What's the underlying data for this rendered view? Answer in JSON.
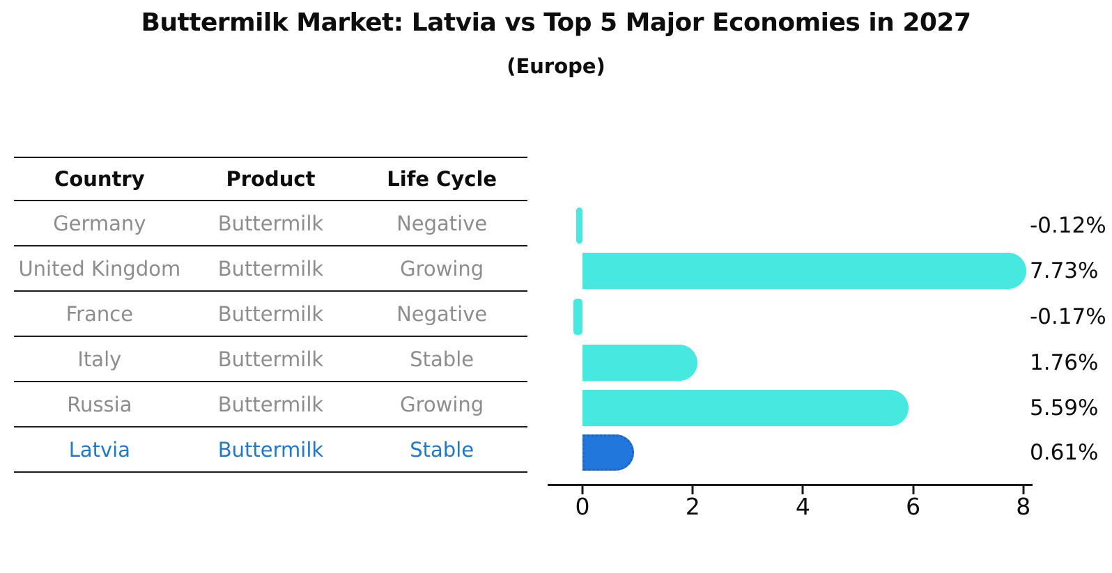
{
  "title": "Buttermilk Market: Latvia vs Top 5 Major Economies in 2027",
  "subtitle": "(Europe)",
  "table": {
    "headers": [
      "Country",
      "Product",
      "Life Cycle"
    ]
  },
  "chart_data": {
    "type": "bar",
    "orientation": "horizontal",
    "title": "Buttermilk Market: Latvia vs Top 5 Major Economies in 2027",
    "subtitle": "(Europe)",
    "xlabel": "",
    "ylabel": "",
    "x_ticks": [
      0,
      2,
      4,
      6,
      8
    ],
    "xlim": [
      -0.6,
      8.2
    ],
    "grid": false,
    "legend": false,
    "categories": [
      "Germany",
      "United Kingdom",
      "France",
      "Italy",
      "Russia",
      "Latvia"
    ],
    "values": [
      -0.12,
      7.73,
      -0.17,
      1.76,
      5.59,
      0.61
    ],
    "rows": [
      {
        "country": "Germany",
        "product": "Buttermilk",
        "life_cycle": "Negative",
        "value": -0.12,
        "label": "-0.12%",
        "highlight": false
      },
      {
        "country": "United Kingdom",
        "product": "Buttermilk",
        "life_cycle": "Growing",
        "value": 7.73,
        "label": "7.73%",
        "highlight": false
      },
      {
        "country": "France",
        "product": "Buttermilk",
        "life_cycle": "Negative",
        "value": -0.17,
        "label": "-0.17%",
        "highlight": false
      },
      {
        "country": "Italy",
        "product": "Buttermilk",
        "life_cycle": "Stable",
        "value": 1.76,
        "label": "1.76%",
        "highlight": false
      },
      {
        "country": "Russia",
        "product": "Buttermilk",
        "life_cycle": "Growing",
        "value": 5.59,
        "label": "5.59%",
        "highlight": false
      },
      {
        "country": "Latvia",
        "product": "Buttermilk",
        "life_cycle": "Stable",
        "value": 0.61,
        "label": "0.61%",
        "highlight": true
      }
    ],
    "colors": {
      "bar": "#46e8e0",
      "highlight_bar": "#2277dc",
      "highlight_text": "#1f78cb",
      "table_text": "#8d8d8d",
      "header_text": "#0d0d0d",
      "axis": "#1a1a1a"
    }
  }
}
